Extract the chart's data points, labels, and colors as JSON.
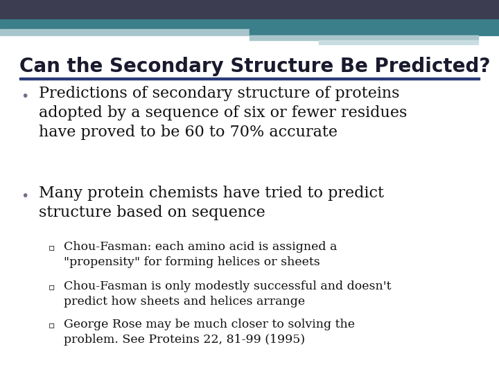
{
  "title": "Can the Secondary Structure Be Predicted?",
  "title_color": "#1a1a2e",
  "title_fontsize": 20,
  "bg_color": "#ffffff",
  "header_bar1_color": "#3d3d52",
  "header_bar2_color": "#3a7f8a",
  "header_bar3_color": "#a8c5cb",
  "divider_color": "#2a3a7a",
  "bullet_color": "#7a6a8a",
  "bullet1": "Predictions of secondary structure of proteins\nadopted by a sequence of six or fewer residues\nhave proved to be 60 to 70% accurate",
  "bullet2": "Many protein chemists have tried to predict\nstructure based on sequence",
  "sub1": "Chou-Fasman: each amino acid is assigned a\n\"propensity\" for forming helices or sheets",
  "sub2": "Chou-Fasman is only modestly successful and doesn't\npredict how sheets and helices arrange",
  "sub3": "George Rose may be much closer to solving the\nproblem. See Proteins 22, 81-99 (1995)",
  "text_color": "#111111",
  "bullet_fontsize": 16,
  "sub_fontsize": 12.5
}
